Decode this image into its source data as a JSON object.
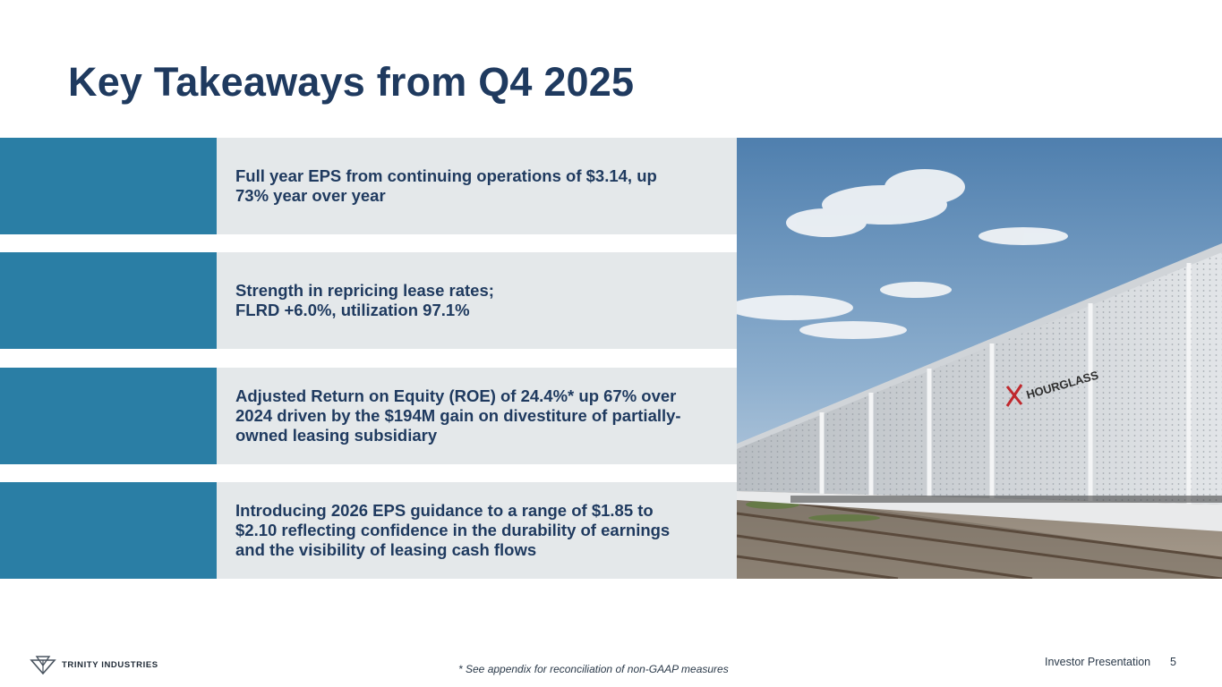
{
  "title": "Key Takeaways from Q4 2025",
  "takeaways": [
    {
      "text": "Full year EPS from continuing operations of $3.14, up\n73% year over year"
    },
    {
      "text": "Strength in repricing lease rates;\nFLRD +6.0%, utilization 97.1%"
    },
    {
      "text": "Adjusted Return on Equity (ROE) of 24.4%* up 67% over\n2024 driven by the $194M gain on divestiture of partially-\nowned leasing subsidiary"
    },
    {
      "text": "Introducing 2026 EPS guidance to a range of $1.85 to\n$2.10 reflecting confidence in the durability of earnings\nand the visibility of leasing cash flows"
    }
  ],
  "photo": {
    "railcar_brand": "HOURGLASS"
  },
  "footer": {
    "company": "TRINITY INDUSTRIES",
    "footnote": "* See appendix for reconciliation of non-GAAP measures",
    "label": "Investor Presentation",
    "page": "5"
  },
  "colors": {
    "title": "#1f3a5f",
    "accent": "#2a7ea5",
    "panel": "#e4e8ea"
  }
}
